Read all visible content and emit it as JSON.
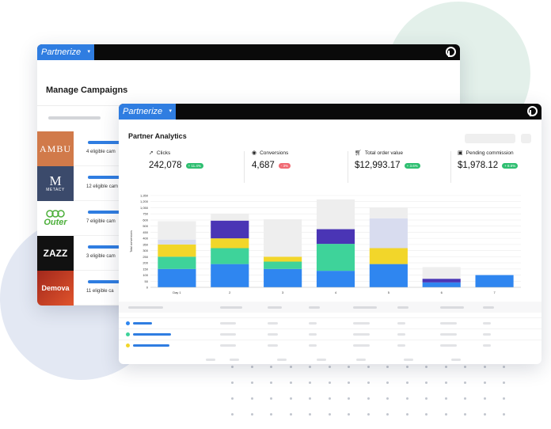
{
  "back_window": {
    "brand": "Partnerize",
    "title": "Manage Campaigns",
    "campaigns": [
      {
        "logo": "AMBU",
        "logo_bg": "#d17a4a",
        "text": "4 eligible cam"
      },
      {
        "logo": "M",
        "logo_sub": "METACY",
        "logo_bg": "#3b4a6b",
        "text": "12 eligible cam"
      },
      {
        "logo": "Outer",
        "logo_bg": "#ffffff",
        "text": "7 eligible cam"
      },
      {
        "logo": "ZAZZ",
        "logo_bg": "#111111",
        "text": "3 eligible cam"
      },
      {
        "logo": "Demova",
        "logo_bg": "#c0391b",
        "text": "11 eligible ca"
      }
    ]
  },
  "front_window": {
    "brand": "Partnerize",
    "title": "Partner Analytics",
    "kpis": [
      {
        "icon": "cursor-icon",
        "label": "Clicks",
        "value": "242,078",
        "delta": "+ 11.4%",
        "delta_color": "#2fbf71"
      },
      {
        "icon": "target-icon",
        "label": "Conversions",
        "value": "4,687",
        "delta": "- 3%",
        "delta_color": "#f06a73"
      },
      {
        "icon": "cart-icon",
        "label": "Total order value",
        "value": "$12,993.17",
        "delta": "+ 3.6%",
        "delta_color": "#2fbf71"
      },
      {
        "icon": "wallet-icon",
        "label": "Pending commission",
        "value": "$1,978.12",
        "delta": "+ 8.6%",
        "delta_color": "#2fbf71"
      }
    ]
  },
  "chart_data": {
    "type": "bar",
    "stacked": true,
    "ylabel": "Total conversions",
    "yticks": [
      "0",
      "50",
      "100",
      "150",
      "200",
      "250",
      "300",
      "350",
      "400",
      "450",
      "500",
      "600",
      "750",
      "1,050",
      "1,200",
      "1,350"
    ],
    "categories": [
      "Day 1",
      "2",
      "3",
      "4",
      "5",
      "6",
      "7"
    ],
    "colors": {
      "blue": "#2f86f0",
      "green": "#3ed39a",
      "yellow": "#f2d62a",
      "purple": "#4a35b5",
      "lavender": "#d8dcef",
      "ghost": "#eeeeee"
    },
    "series": [
      {
        "color": "blue",
        "values": [
          150,
          190,
          150,
          135,
          190,
          40,
          100
        ]
      },
      {
        "color": "green",
        "values": [
          100,
          130,
          60,
          220,
          0,
          0,
          0
        ]
      },
      {
        "color": "yellow",
        "values": [
          100,
          80,
          40,
          0,
          130,
          0,
          0
        ]
      },
      {
        "color": "purple",
        "values": [
          0,
          190,
          0,
          120,
          0,
          30,
          0
        ]
      },
      {
        "color": "lavender",
        "values": [
          40,
          0,
          0,
          0,
          320,
          0,
          0
        ]
      },
      {
        "color": "ghost",
        "values": [
          190,
          170,
          370,
          780,
          420,
          95,
          0
        ]
      }
    ],
    "ylim": [
      0,
      1350
    ]
  },
  "table": {
    "row_dots": [
      "#2f86f0",
      "#3ed39a",
      "#f2d62a"
    ]
  }
}
